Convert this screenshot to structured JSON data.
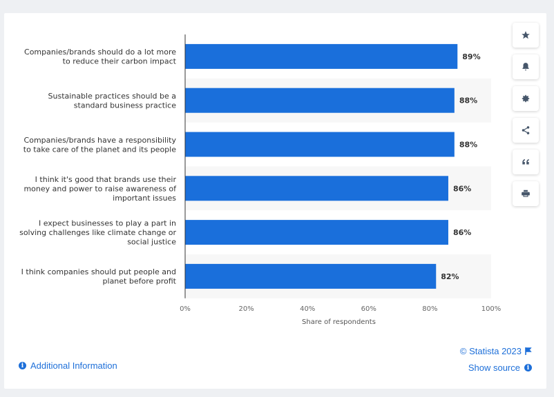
{
  "chart_data": {
    "type": "bar",
    "orientation": "horizontal",
    "categories": [
      [
        "Companies/brands should do a lot more",
        "to reduce their carbon impact"
      ],
      [
        "Sustainable practices should be a",
        "standard business practice"
      ],
      [
        "Companies/brands have a responsibility",
        "to take care of the planet and its people"
      ],
      [
        "I think it's good that brands use their",
        "money and power to raise awareness of",
        "important issues"
      ],
      [
        "I expect businesses to play a part in",
        "solving challenges like climate change or",
        "social justice"
      ],
      [
        "I think companies should put people and",
        "planet before profit"
      ]
    ],
    "values": [
      89,
      88,
      88,
      86,
      86,
      82
    ],
    "data_labels": [
      "89%",
      "88%",
      "88%",
      "86%",
      "86%",
      "82%"
    ],
    "xlabel": "Share of respondents",
    "ylabel": "",
    "xlim": [
      0,
      100
    ],
    "ticks": [
      "0%",
      "20%",
      "40%",
      "60%",
      "80%",
      "100%"
    ],
    "bar_color": "#1a6fdb",
    "alt_band_color": "#f7f7f7"
  },
  "toolbar": {
    "icons": [
      "star-icon",
      "bell-icon",
      "gear-icon",
      "share-icon",
      "quote-icon",
      "print-icon"
    ]
  },
  "footer": {
    "additional_info": "Additional Information",
    "copyright": "© Statista 2023",
    "show_source": "Show source"
  }
}
